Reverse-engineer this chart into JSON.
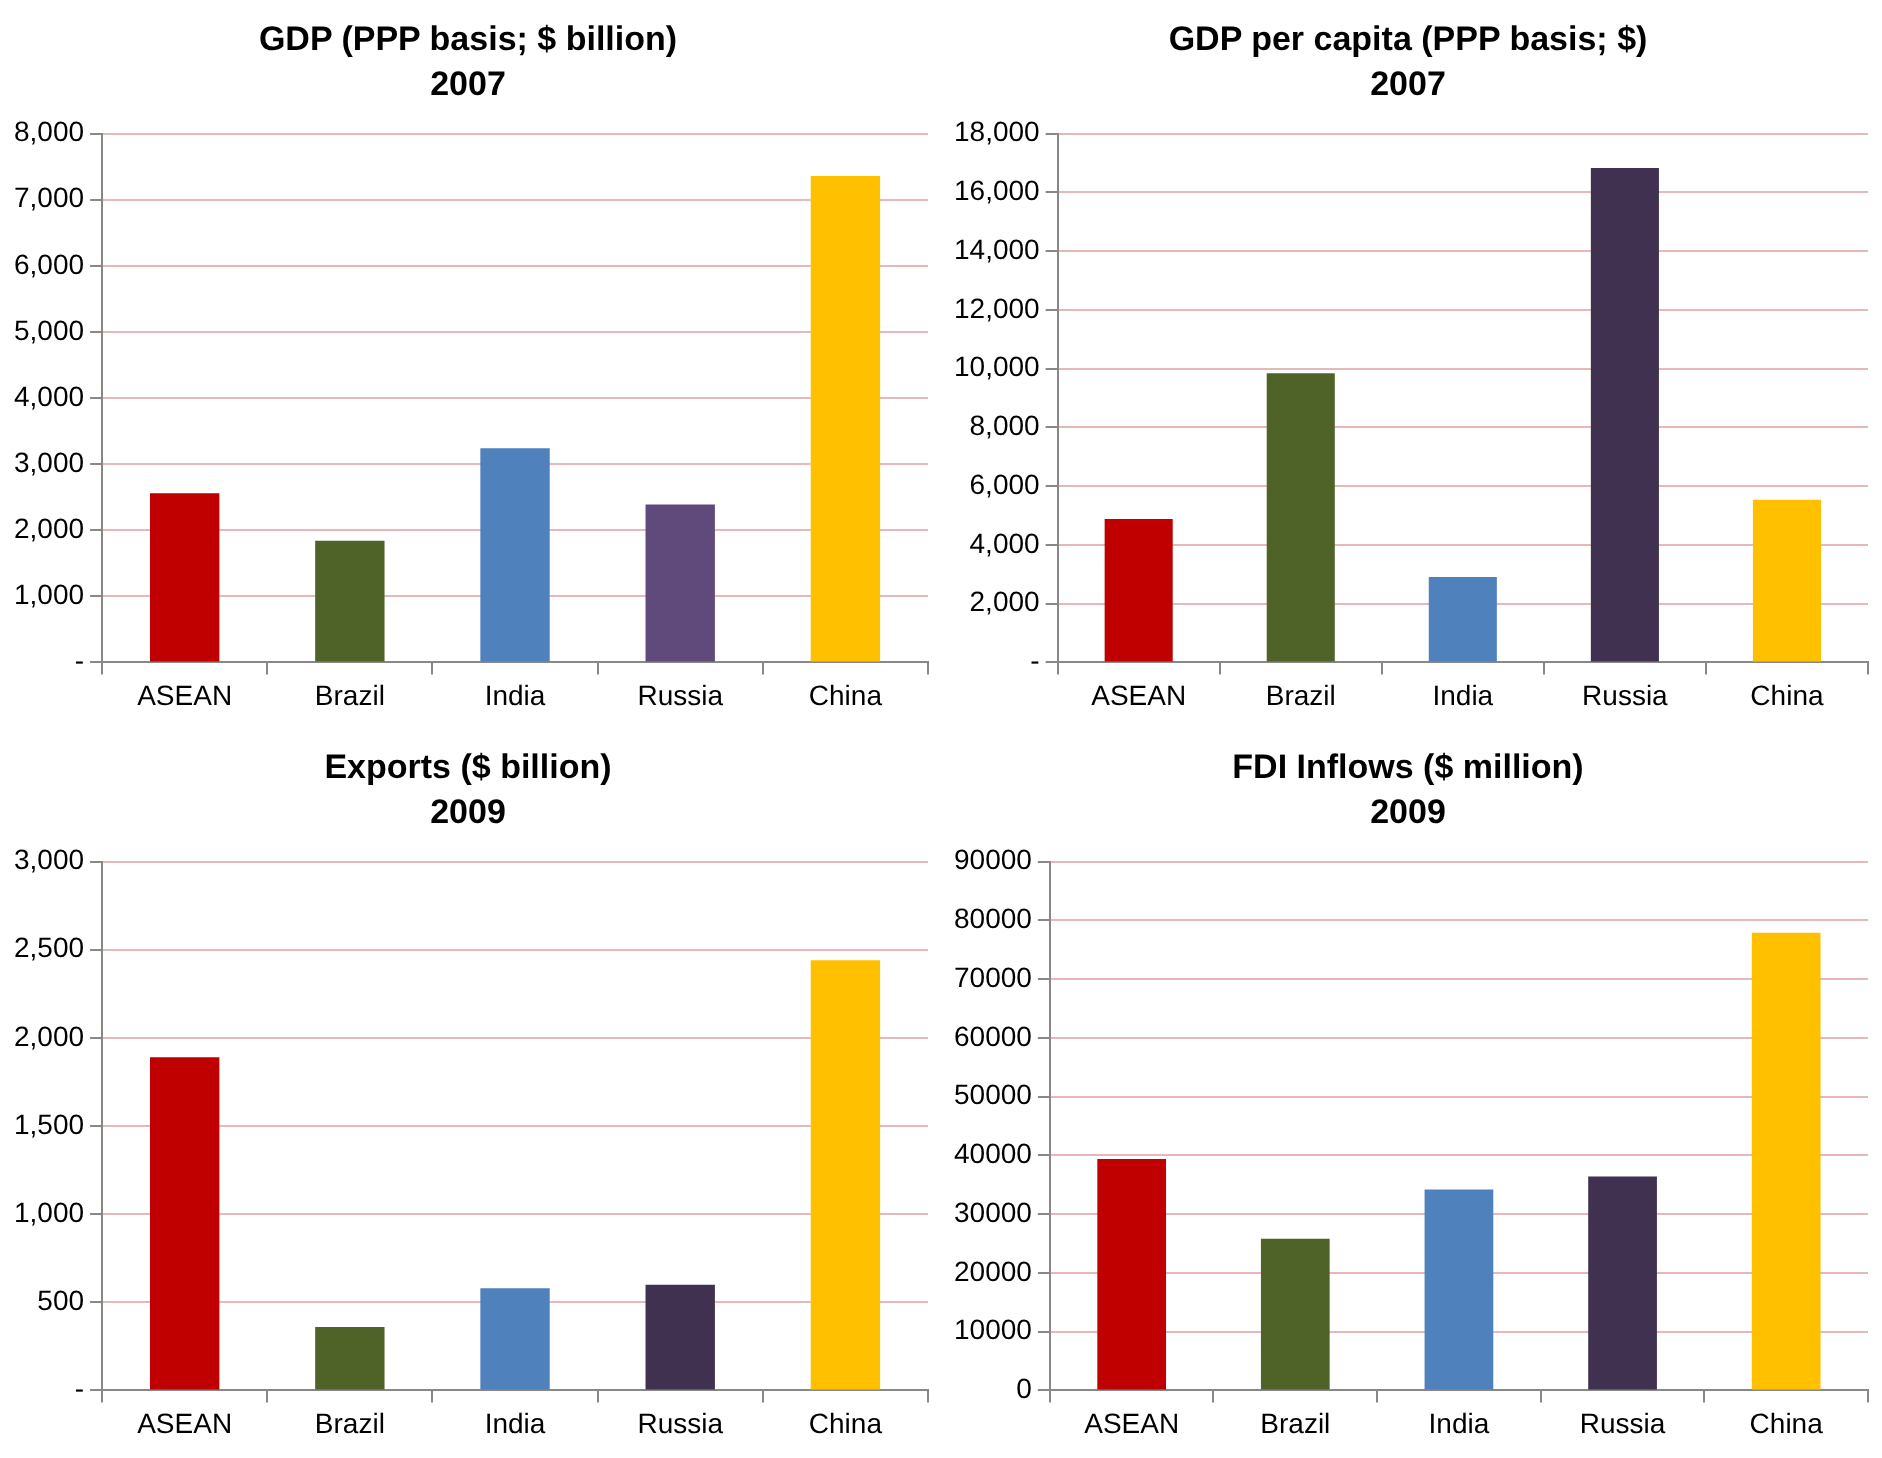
{
  "chart_data": [
    {
      "type": "bar",
      "title": "GDP (PPP basis; $ billion)",
      "subtitle": "2007",
      "categories": [
        "ASEAN",
        "Brazil",
        "India",
        "Russia",
        "China"
      ],
      "values": [
        2560,
        1840,
        3240,
        2390,
        7360
      ],
      "colors": [
        "#c00000",
        "#4f6228",
        "#4f81bd",
        "#604a7b",
        "#ffc000"
      ],
      "ylim": [
        0,
        8000
      ],
      "yticks": [
        {
          "value": 0,
          "label": "-"
        },
        {
          "value": 1000,
          "label": "1,000"
        },
        {
          "value": 2000,
          "label": "2,000"
        },
        {
          "value": 3000,
          "label": "3,000"
        },
        {
          "value": 4000,
          "label": "4,000"
        },
        {
          "value": 5000,
          "label": "5,000"
        },
        {
          "value": 6000,
          "label": "6,000"
        },
        {
          "value": 7000,
          "label": "7,000"
        },
        {
          "value": 8000,
          "label": "8,000"
        }
      ],
      "grid": "y"
    },
    {
      "type": "bar",
      "title": "GDP per capita (PPP basis; $)",
      "subtitle": "2007",
      "categories": [
        "ASEAN",
        "Brazil",
        "India",
        "Russia",
        "China"
      ],
      "values": [
        4880,
        9840,
        2910,
        16830,
        5540
      ],
      "colors": [
        "#c00000",
        "#4f6228",
        "#4f81bd",
        "#403151",
        "#ffc000"
      ],
      "ylim": [
        0,
        18000
      ],
      "yticks": [
        {
          "value": 0,
          "label": "-"
        },
        {
          "value": 2000,
          "label": "2,000"
        },
        {
          "value": 4000,
          "label": "4,000"
        },
        {
          "value": 6000,
          "label": "6,000"
        },
        {
          "value": 8000,
          "label": "8,000"
        },
        {
          "value": 10000,
          "label": "10,000"
        },
        {
          "value": 12000,
          "label": "12,000"
        },
        {
          "value": 14000,
          "label": "14,000"
        },
        {
          "value": 16000,
          "label": "16,000"
        },
        {
          "value": 18000,
          "label": "18,000"
        }
      ],
      "grid": "y"
    },
    {
      "type": "bar",
      "title": "Exports ($ billion)",
      "subtitle": "2009",
      "categories": [
        "ASEAN",
        "Brazil",
        "India",
        "Russia",
        "China"
      ],
      "values": [
        1890,
        360,
        580,
        600,
        2440
      ],
      "colors": [
        "#c00000",
        "#4f6228",
        "#4f81bd",
        "#403151",
        "#ffc000"
      ],
      "ylim": [
        0,
        3000
      ],
      "yticks": [
        {
          "value": 0,
          "label": "-"
        },
        500,
        {
          "value": 1000,
          "label": "1,000"
        },
        {
          "value": 1500,
          "label": "1,500"
        },
        {
          "value": 2000,
          "label": "2,000"
        },
        {
          "value": 2500,
          "label": "2,500"
        },
        {
          "value": 3000,
          "label": "3,000"
        }
      ],
      "grid": "y"
    },
    {
      "type": "bar",
      "title": "FDI Inflows ($ million)",
      "subtitle": "2009",
      "categories": [
        "ASEAN",
        "Brazil",
        "India",
        "Russia",
        "China"
      ],
      "values": [
        39400,
        25800,
        34200,
        36400,
        77900
      ],
      "colors": [
        "#c00000",
        "#4f6228",
        "#4f81bd",
        "#403151",
        "#ffc000"
      ],
      "ylim": [
        0,
        90000
      ],
      "yticks": [
        0,
        10000,
        20000,
        30000,
        40000,
        50000,
        60000,
        70000,
        80000,
        90000
      ],
      "grid": "y"
    }
  ]
}
